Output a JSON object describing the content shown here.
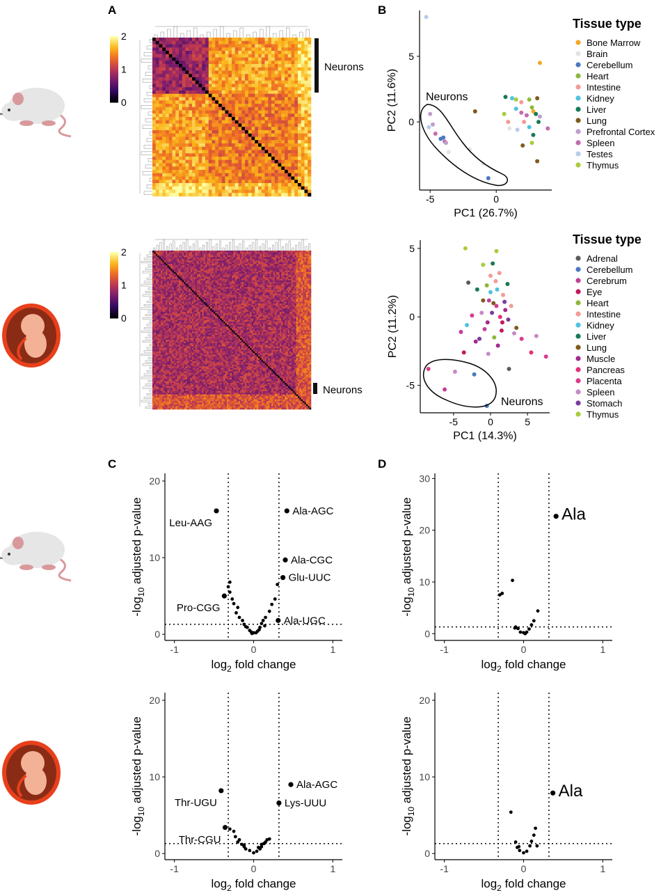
{
  "panel_labels": {
    "A": "A",
    "B": "B",
    "C": "C",
    "D": "D"
  },
  "annotations": {
    "neurons": "Neurons"
  },
  "colors": {
    "mouse_body": "#e6e6e6",
    "mouse_pink": "#d9999c",
    "embryo_outer": "#e8401c",
    "embryo_inner": "#8a2b16",
    "embryo_body": "#f3b196",
    "inferno": [
      "#000004",
      "#320a5e",
      "#781c6d",
      "#bc3754",
      "#ed6925",
      "#fbb61a",
      "#fcffa4"
    ]
  },
  "chart_data": [
    {
      "id": "A_mouse",
      "type": "heatmap",
      "n": 48,
      "colorbar": {
        "ticks": [
          "0",
          "1",
          "2"
        ]
      },
      "neurons_cluster": "Neurons"
    },
    {
      "id": "A_human",
      "type": "heatmap",
      "n": 96,
      "colorbar": {
        "ticks": [
          "0",
          "1",
          "2"
        ]
      },
      "neurons_cluster": "Neurons"
    },
    {
      "id": "B_mouse",
      "type": "scatter",
      "xlabel": "PC1 (26.7%)",
      "ylabel": "PC2 (11.6%)",
      "xlim": [
        -5.8,
        4.2
      ],
      "ylim": [
        -5.2,
        8.5
      ],
      "xticks": [
        -5,
        0
      ],
      "yticks": [
        0,
        5
      ],
      "legend_title": "Tissue type",
      "ellipse_label": "Neurons",
      "legend": [
        {
          "name": "Bone Marrow",
          "color": "#f5a623"
        },
        {
          "name": "Brain",
          "color": "#e3e3e3"
        },
        {
          "name": "Cerebellum",
          "color": "#4a78c2"
        },
        {
          "name": "Heart",
          "color": "#8db83a"
        },
        {
          "name": "Intestine",
          "color": "#f29b96"
        },
        {
          "name": "Kidney",
          "color": "#4ec3e0"
        },
        {
          "name": "Liver",
          "color": "#177a55"
        },
        {
          "name": "Lung",
          "color": "#7f5a1c"
        },
        {
          "name": "Prefrontal Cortex",
          "color": "#c29ccc"
        },
        {
          "name": "Spleen",
          "color": "#c26bb0"
        },
        {
          "name": "Testes",
          "color": "#b7cde8"
        },
        {
          "name": "Thymus",
          "color": "#a8cc3a"
        }
      ],
      "points": [
        [
          -5.3,
          8.0,
          10
        ],
        [
          3.3,
          4.5,
          0
        ],
        [
          -5.0,
          0.6,
          8
        ],
        [
          -4.8,
          -0.2,
          8
        ],
        [
          -4.6,
          -0.9,
          9
        ],
        [
          -4.2,
          -1.3,
          2
        ],
        [
          -4.0,
          -1.2,
          2
        ],
        [
          -3.9,
          -1.5,
          9
        ],
        [
          -3.6,
          -2.3,
          1
        ],
        [
          -2.0,
          -2.1,
          1
        ],
        [
          -1.6,
          0.8,
          7
        ],
        [
          -1.0,
          -3.2,
          1
        ],
        [
          -0.6,
          -4.3,
          2
        ],
        [
          -3.8,
          -1.6,
          8
        ],
        [
          -5.1,
          -0.4,
          10
        ],
        [
          1.2,
          1.8,
          5
        ],
        [
          1.5,
          1.0,
          5
        ],
        [
          1.9,
          1.5,
          4
        ],
        [
          2.5,
          1.7,
          3
        ],
        [
          2.7,
          1.1,
          3
        ],
        [
          0.9,
          0.0,
          4
        ],
        [
          1.0,
          -0.5,
          1
        ],
        [
          1.6,
          -0.6,
          10
        ],
        [
          1.9,
          0.7,
          9
        ],
        [
          2.1,
          0.0,
          4
        ],
        [
          2.5,
          -0.4,
          5
        ],
        [
          2.8,
          0.8,
          0
        ],
        [
          3.0,
          0.6,
          6
        ],
        [
          3.1,
          1.8,
          7
        ],
        [
          3.2,
          0.0,
          6
        ],
        [
          3.9,
          -0.5,
          9
        ],
        [
          0.6,
          0.6,
          11
        ],
        [
          2.0,
          -1.8,
          7
        ],
        [
          2.7,
          -1.6,
          11
        ],
        [
          3.1,
          -3.0,
          7
        ],
        [
          2.8,
          -1.0,
          6
        ],
        [
          1.5,
          1.7,
          11
        ],
        [
          2.3,
          0.5,
          9
        ],
        [
          3.3,
          0.4,
          8
        ],
        [
          0.7,
          1.9,
          6
        ]
      ]
    },
    {
      "id": "B_human",
      "type": "scatter",
      "xlabel": "PC1 (14.3%)",
      "ylabel": "PC2 (11.2%)",
      "xlim": [
        -9.5,
        8
      ],
      "ylim": [
        -7,
        5.6
      ],
      "xticks": [
        -5,
        0,
        5
      ],
      "yticks": [
        -5,
        0,
        5
      ],
      "legend_title": "Tissue type",
      "ellipse_label": "Neurons",
      "legend": [
        {
          "name": "Adrenal",
          "color": "#5a5a5a"
        },
        {
          "name": "Cerebellum",
          "color": "#4a78c2"
        },
        {
          "name": "Cerebrum",
          "color": "#c0409a"
        },
        {
          "name": "Eye",
          "color": "#c2195e"
        },
        {
          "name": "Heart",
          "color": "#8db83a"
        },
        {
          "name": "Intestine",
          "color": "#f29b96"
        },
        {
          "name": "Kidney",
          "color": "#4ec3e0"
        },
        {
          "name": "Liver",
          "color": "#177a55"
        },
        {
          "name": "Lung",
          "color": "#7f5a1c"
        },
        {
          "name": "Muscle",
          "color": "#a32a8d"
        },
        {
          "name": "Pancreas",
          "color": "#e6307a"
        },
        {
          "name": "Placenta",
          "color": "#d83c8e"
        },
        {
          "name": "Spleen",
          "color": "#c78ac4"
        },
        {
          "name": "Stomach",
          "color": "#7a3b9c"
        },
        {
          "name": "Thymus",
          "color": "#a8cc3a"
        }
      ],
      "points": [
        [
          -8.4,
          -3.8,
          11
        ],
        [
          -6.2,
          -5.3,
          2
        ],
        [
          -4.8,
          -4.0,
          12
        ],
        [
          -2.2,
          -4.2,
          1
        ],
        [
          -0.5,
          -6.5,
          1
        ],
        [
          -4.0,
          -1.1,
          2
        ],
        [
          -3.6,
          -2.6,
          3
        ],
        [
          -3.2,
          -0.6,
          6
        ],
        [
          -3.0,
          2.5,
          0
        ],
        [
          -3.4,
          5.0,
          14
        ],
        [
          -1.8,
          2.0,
          7
        ],
        [
          -1.0,
          3.8,
          14
        ],
        [
          0.8,
          4.8,
          14
        ],
        [
          1.2,
          3.2,
          5
        ],
        [
          0.3,
          3.9,
          7
        ],
        [
          0.7,
          2.6,
          5
        ],
        [
          -1.0,
          1.2,
          8
        ],
        [
          -0.5,
          2.3,
          4
        ],
        [
          0.0,
          1.8,
          6
        ],
        [
          0.4,
          1.0,
          8
        ],
        [
          -1.2,
          0.3,
          12
        ],
        [
          -0.4,
          -0.4,
          9
        ],
        [
          0.2,
          0.3,
          13
        ],
        [
          0.8,
          0.8,
          11
        ],
        [
          1.3,
          0.0,
          10
        ],
        [
          1.6,
          -0.4,
          3
        ],
        [
          2.0,
          0.5,
          9
        ],
        [
          2.4,
          -0.2,
          13
        ],
        [
          2.8,
          0.8,
          5
        ],
        [
          3.2,
          -1.2,
          12
        ],
        [
          4.2,
          -1.6,
          11
        ],
        [
          5.5,
          -2.6,
          10
        ],
        [
          6.2,
          -1.4,
          12
        ],
        [
          7.5,
          -2.9,
          11
        ],
        [
          2.5,
          -3.8,
          0
        ],
        [
          -1.5,
          -1.6,
          13
        ],
        [
          -0.8,
          -0.9,
          2
        ],
        [
          0.5,
          -1.5,
          4
        ],
        [
          1.0,
          -2.1,
          9
        ],
        [
          -0.3,
          -2.7,
          12
        ],
        [
          1.7,
          1.6,
          5
        ],
        [
          2.3,
          2.4,
          7
        ],
        [
          0.9,
          2.0,
          6
        ],
        [
          -0.2,
          1.2,
          2
        ],
        [
          1.5,
          -1.0,
          3
        ],
        [
          3.5,
          -0.8,
          8
        ],
        [
          -2.5,
          0.1,
          11
        ],
        [
          -2.0,
          -1.8,
          9
        ],
        [
          0.0,
          3.0,
          5
        ],
        [
          1.9,
          1.1,
          13
        ]
      ]
    },
    {
      "id": "C_mouse",
      "type": "scatter",
      "xlabel": "log2 fold change",
      "ylabel": "-log10 adjusted p-value",
      "xlim": [
        -1.12,
        1.12
      ],
      "ylim": [
        -0.8,
        21
      ],
      "xticks": [
        -1,
        0,
        1
      ],
      "yticks": [
        0,
        10,
        20
      ],
      "vlines": [
        -0.32,
        0.32
      ],
      "hline": 1.3,
      "labeled_points": [
        {
          "label": "Leu-AAG",
          "x": -0.47,
          "y": 16.1
        },
        {
          "label": "Ala-AGC",
          "x": 0.42,
          "y": 16.1
        },
        {
          "label": "Ala-CGC",
          "x": 0.4,
          "y": 9.7
        },
        {
          "label": "Glu-UUC",
          "x": 0.37,
          "y": 7.4
        },
        {
          "label": "Pro-CGG",
          "x": -0.37,
          "y": 5.0
        },
        {
          "label": "Ala-UGC",
          "x": 0.31,
          "y": 1.8
        }
      ],
      "points": [
        [
          -0.3,
          6.8
        ],
        [
          -0.32,
          6.2
        ],
        [
          -0.3,
          5.5
        ],
        [
          -0.27,
          4.6
        ],
        [
          -0.25,
          4.0
        ],
        [
          -0.2,
          3.5
        ],
        [
          -0.22,
          2.8
        ],
        [
          -0.18,
          2.2
        ],
        [
          -0.14,
          1.8
        ],
        [
          -0.12,
          1.3
        ],
        [
          -0.08,
          0.9
        ],
        [
          -0.05,
          0.5
        ],
        [
          -0.03,
          0.3
        ],
        [
          0.0,
          0.2
        ],
        [
          0.03,
          0.2
        ],
        [
          0.05,
          0.4
        ],
        [
          0.08,
          0.9
        ],
        [
          0.1,
          1.4
        ],
        [
          0.12,
          1.8
        ],
        [
          0.15,
          2.2
        ],
        [
          0.2,
          3.0
        ],
        [
          0.23,
          3.9
        ],
        [
          0.27,
          4.6
        ],
        [
          0.3,
          6.5
        ],
        [
          -0.1,
          1.0
        ],
        [
          0.07,
          0.6
        ],
        [
          -0.02,
          0.1
        ],
        [
          0.14,
          1.1
        ]
      ]
    },
    {
      "id": "C_human",
      "type": "scatter",
      "xlabel": "log2 fold change",
      "ylabel": "-log10 adjusted p-value",
      "xlim": [
        -1.12,
        1.12
      ],
      "ylim": [
        -0.8,
        21
      ],
      "xticks": [
        -1,
        0,
        1
      ],
      "yticks": [
        0,
        10,
        20
      ],
      "vlines": [
        -0.32,
        0.32
      ],
      "hline": 1.3,
      "labeled_points": [
        {
          "label": "Thr-UGU",
          "x": -0.41,
          "y": 8.2
        },
        {
          "label": "Ala-AGC",
          "x": 0.47,
          "y": 9.0
        },
        {
          "label": "Lys-UUU",
          "x": 0.32,
          "y": 6.6
        },
        {
          "label": "Thr-CGU",
          "x": -0.36,
          "y": 3.4
        }
      ],
      "points": [
        [
          -0.3,
          3.2
        ],
        [
          -0.25,
          2.9
        ],
        [
          -0.23,
          2.2
        ],
        [
          -0.18,
          1.8
        ],
        [
          -0.15,
          1.2
        ],
        [
          -0.12,
          0.9
        ],
        [
          -0.1,
          0.6
        ],
        [
          -0.05,
          0.4
        ],
        [
          0.0,
          0.1
        ],
        [
          0.04,
          0.3
        ],
        [
          0.08,
          0.6
        ],
        [
          0.1,
          0.9
        ],
        [
          0.13,
          1.3
        ],
        [
          0.17,
          1.8
        ],
        [
          0.2,
          1.9
        ],
        [
          -0.12,
          1.1
        ],
        [
          0.1,
          1.2
        ],
        [
          -0.2,
          1.5
        ],
        [
          0.06,
          0.8
        ],
        [
          0.15,
          1.5
        ]
      ]
    },
    {
      "id": "D_mouse",
      "type": "scatter",
      "xlabel": "log2 fold change",
      "ylabel": "-log10 adjusted p-value",
      "xlim": [
        -1.12,
        1.12
      ],
      "ylim": [
        -1.3,
        31
      ],
      "xticks": [
        -1,
        0,
        1
      ],
      "yticks": [
        0,
        10,
        20,
        30
      ],
      "vlines": [
        -0.32,
        0.32
      ],
      "hline": 1.3,
      "labeled_points": [
        {
          "label": "Ala",
          "x": 0.41,
          "y": 22.7
        }
      ],
      "points": [
        [
          -0.3,
          7.5
        ],
        [
          -0.27,
          7.8
        ],
        [
          -0.14,
          10.3
        ],
        [
          -0.1,
          1.3
        ],
        [
          -0.07,
          1.0
        ],
        [
          -0.04,
          0.3
        ],
        [
          0.0,
          0.2
        ],
        [
          0.04,
          0.3
        ],
        [
          0.07,
          0.9
        ],
        [
          0.1,
          1.7
        ],
        [
          0.13,
          2.5
        ],
        [
          0.18,
          4.4
        ],
        [
          -0.11,
          1.1
        ],
        [
          0.02,
          0.0
        ]
      ]
    },
    {
      "id": "D_human",
      "type": "scatter",
      "xlabel": "log2 fold change",
      "ylabel": "-log10 adjusted p-value",
      "xlim": [
        -1.12,
        1.12
      ],
      "ylim": [
        -0.8,
        21
      ],
      "xticks": [
        -1,
        0,
        1
      ],
      "yticks": [
        0,
        10,
        20
      ],
      "vlines": [
        -0.32,
        0.32
      ],
      "hline": 1.3,
      "labeled_points": [
        {
          "label": "Ala",
          "x": 0.37,
          "y": 7.9
        }
      ],
      "points": [
        [
          -0.16,
          5.4
        ],
        [
          -0.1,
          1.5
        ],
        [
          -0.08,
          0.8
        ],
        [
          -0.05,
          0.4
        ],
        [
          0.0,
          0.1
        ],
        [
          0.04,
          0.3
        ],
        [
          0.08,
          1.0
        ],
        [
          0.1,
          1.6
        ],
        [
          0.13,
          2.4
        ],
        [
          0.15,
          3.3
        ],
        [
          0.17,
          1.0
        ],
        [
          -0.06,
          0.9
        ]
      ]
    }
  ]
}
